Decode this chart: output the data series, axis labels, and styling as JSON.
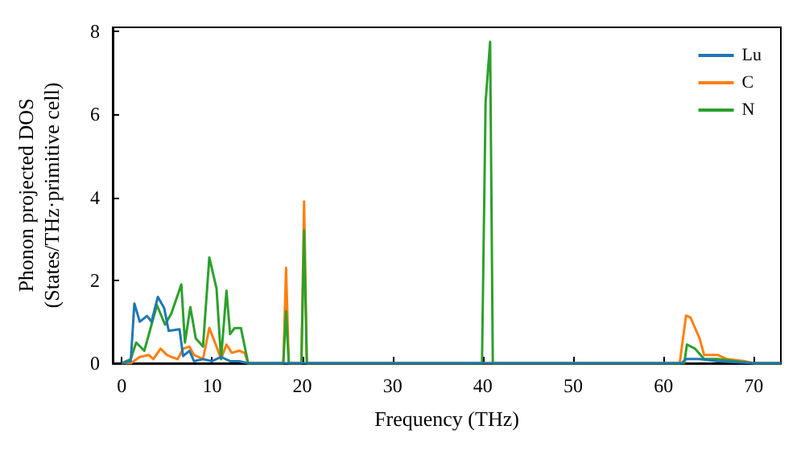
{
  "chart_data": {
    "type": "line",
    "xlabel": "Frequency (THz)",
    "ylabel": "Phonon projected DOS\n(States/THz·primitive cell)",
    "xlim": [
      -1,
      73
    ],
    "ylim": [
      0,
      8.1
    ],
    "xticks": [
      0,
      10,
      20,
      30,
      40,
      50,
      60,
      70
    ],
    "yticks": [
      0,
      2,
      4,
      6,
      8
    ],
    "legend": "top right",
    "grid": false,
    "marker": "none",
    "line_style": "solid",
    "series": [
      {
        "name": "Lu",
        "color": "#1f77b4",
        "x": [
          0,
          1,
          1.4,
          2,
          2.8,
          3.3,
          4,
          4.7,
          5.2,
          6.4,
          6.8,
          7.5,
          8,
          9,
          10,
          11,
          12,
          13,
          14,
          62,
          62.5,
          64,
          66,
          70,
          73
        ],
        "values": [
          0,
          0.05,
          1.44,
          1,
          1.14,
          1,
          1.6,
          1.33,
          0.78,
          0.82,
          0.17,
          0.3,
          0.05,
          0.1,
          0.05,
          0.15,
          0.05,
          0.05,
          0,
          0,
          0.1,
          0.1,
          0.05,
          0,
          0
        ]
      },
      {
        "name": "C",
        "color": "#ff7f0e",
        "x": [
          0,
          1,
          2,
          3,
          3.5,
          4.3,
          5,
          5.5,
          6.2,
          6.8,
          7.5,
          8,
          9,
          9.7,
          10.5,
          11,
          11.6,
          12.2,
          13,
          13.6,
          14,
          17.9,
          18.2,
          18.5,
          19.9,
          20.2,
          20.5,
          61.8,
          62.5,
          63,
          64,
          64.5,
          66,
          67,
          69,
          70,
          73
        ],
        "values": [
          0,
          0,
          0.15,
          0.2,
          0.1,
          0.35,
          0.2,
          0.15,
          0.1,
          0.35,
          0.4,
          0.2,
          0.1,
          0.85,
          0.4,
          0.1,
          0.45,
          0.25,
          0.3,
          0.25,
          0,
          0,
          2.3,
          0,
          0,
          3.9,
          0,
          0,
          1.15,
          1.1,
          0.6,
          0.2,
          0.2,
          0.1,
          0.05,
          0,
          0
        ]
      },
      {
        "name": "N",
        "color": "#2ca02c",
        "x": [
          0,
          1,
          1.6,
          2.5,
          3.9,
          4.8,
          5.5,
          6.6,
          7,
          7.6,
          8.2,
          9,
          9.7,
          10.5,
          11,
          11.6,
          12,
          12.5,
          13.2,
          14,
          17.9,
          18.2,
          18.5,
          19.9,
          20.2,
          20.5,
          39.9,
          40.3,
          40.8,
          41.1,
          62.3,
          62.6,
          63.5,
          64.5,
          66,
          68,
          70,
          73
        ],
        "values": [
          0,
          0.1,
          0.5,
          0.3,
          1.4,
          0.93,
          1.2,
          1.9,
          0.5,
          1.35,
          0.6,
          0.4,
          2.55,
          1.8,
          0.1,
          1.75,
          0.7,
          0.85,
          0.85,
          0,
          0,
          1.25,
          0,
          0,
          3.2,
          0,
          0,
          6.3,
          7.75,
          0,
          0,
          0.45,
          0.35,
          0.1,
          0.1,
          0.05,
          0,
          0
        ]
      }
    ]
  }
}
